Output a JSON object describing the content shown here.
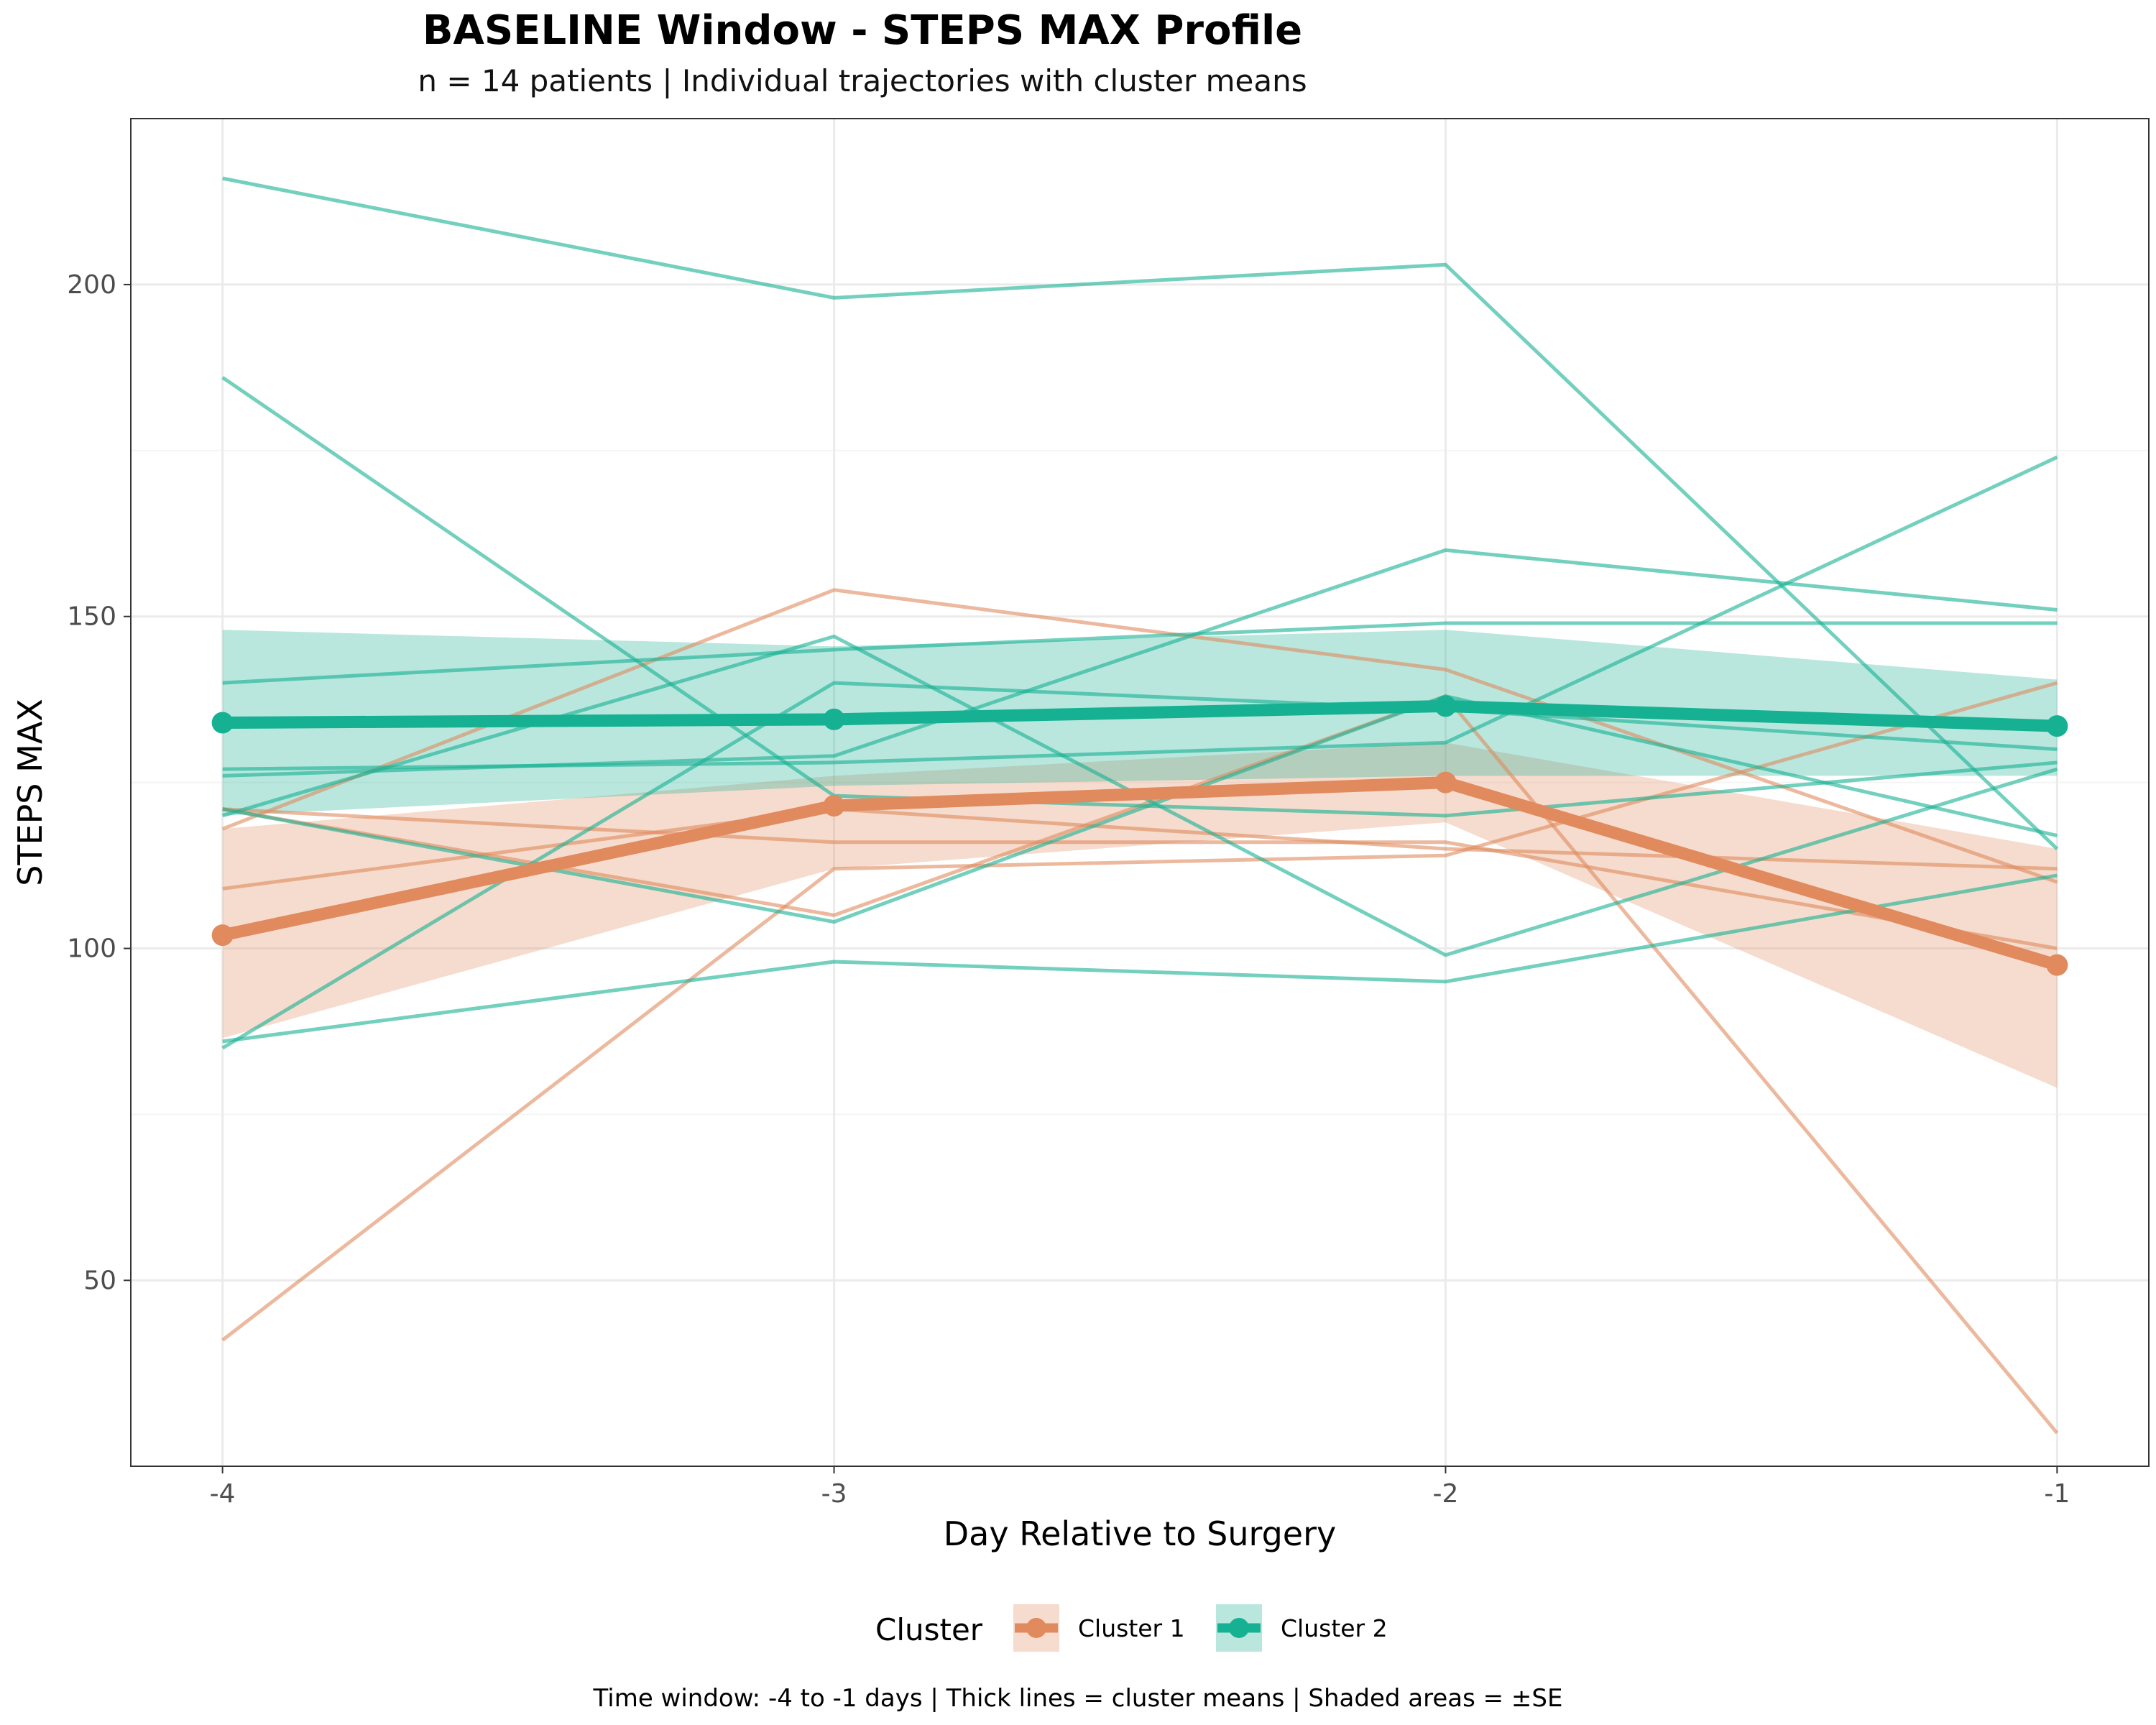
{
  "chart_data": {
    "type": "line",
    "title": "BASELINE Window - STEPS MAX Profile",
    "subtitle": "n = 14 patients | Individual trajectories with cluster means",
    "xlabel": "Day Relative to Surgery",
    "ylabel": "STEPS MAX",
    "x": [
      -4,
      -3,
      -2,
      -1
    ],
    "x_tick_labels": [
      "-4",
      "-3",
      "-2",
      "-1"
    ],
    "y_ticks": [
      50,
      100,
      150,
      200
    ],
    "xlim": [
      -4.15,
      -0.85
    ],
    "ylim": [
      22,
      225
    ],
    "grid": true,
    "legend": {
      "title": "Cluster",
      "placement": "bottom",
      "entries": [
        "Cluster 1",
        "Cluster 2"
      ]
    },
    "caption": "Time window: -4 to -1 days | Thick lines = cluster means | Shaded areas = ±SE",
    "colors": {
      "Cluster 1": "#e08a5e",
      "Cluster 2": "#16b192"
    },
    "means": [
      {
        "name": "Cluster 1",
        "values": [
          102,
          121.5,
          125,
          97.5
        ],
        "se_lower": [
          86.5,
          112,
          119,
          79
        ],
        "se_upper": [
          118,
          126,
          131,
          115
        ]
      },
      {
        "name": "Cluster 2",
        "values": [
          134,
          134.5,
          136.5,
          133.5
        ],
        "se_lower": [
          120,
          124.5,
          126,
          126
        ],
        "se_upper": [
          148,
          145.5,
          148,
          140.5
        ]
      }
    ],
    "individuals": [
      {
        "cluster": "Cluster 1",
        "values": [
          41,
          112,
          114,
          140
        ]
      },
      {
        "cluster": "Cluster 1",
        "values": [
          118,
          154,
          142,
          110
        ]
      },
      {
        "cluster": "Cluster 1",
        "values": [
          121,
          105,
          138,
          27
        ]
      },
      {
        "cluster": "Cluster 1",
        "values": [
          121,
          116,
          116,
          100
        ]
      },
      {
        "cluster": "Cluster 1",
        "values": [
          109,
          121,
          115,
          112
        ]
      },
      {
        "cluster": "Cluster 2",
        "values": [
          216,
          198,
          203,
          115
        ]
      },
      {
        "cluster": "Cluster 2",
        "values": [
          186,
          123,
          120,
          128
        ]
      },
      {
        "cluster": "Cluster 2",
        "values": [
          140,
          145,
          149,
          149
        ]
      },
      {
        "cluster": "Cluster 2",
        "values": [
          127,
          128,
          131,
          174
        ]
      },
      {
        "cluster": "Cluster 2",
        "values": [
          126,
          129,
          160,
          151
        ]
      },
      {
        "cluster": "Cluster 2",
        "values": [
          120,
          147,
          99,
          127
        ]
      },
      {
        "cluster": "Cluster 2",
        "values": [
          121,
          104,
          138,
          117
        ]
      },
      {
        "cluster": "Cluster 2",
        "values": [
          85,
          140,
          136,
          130
        ]
      },
      {
        "cluster": "Cluster 2",
        "values": [
          86,
          98,
          95,
          111
        ]
      }
    ]
  }
}
